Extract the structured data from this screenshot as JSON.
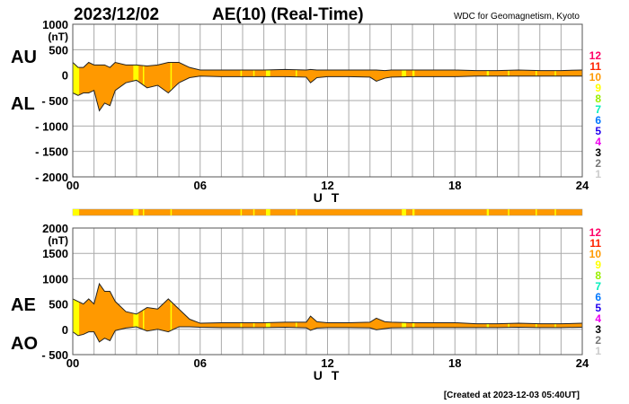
{
  "header": {
    "date": "2023/12/02",
    "title": "AE(10) (Real-Time)",
    "source": "WDC for Geomagnetism, Kyoto"
  },
  "footer": "[Created at 2023-12-03 05:40UT]",
  "legend": {
    "items": [
      {
        "label": "12",
        "color": "#ff0066"
      },
      {
        "label": "11",
        "color": "#ff2200"
      },
      {
        "label": "10",
        "color": "#ff9900"
      },
      {
        "label": "9",
        "color": "#ffff00"
      },
      {
        "label": "8",
        "color": "#99ee00"
      },
      {
        "label": "7",
        "color": "#00eebb"
      },
      {
        "label": "6",
        "color": "#0077ff"
      },
      {
        "label": "5",
        "color": "#2200ee"
      },
      {
        "label": "4",
        "color": "#ee00ee"
      },
      {
        "label": "3",
        "color": "#000000"
      },
      {
        "label": "2",
        "color": "#777777"
      },
      {
        "label": "1",
        "color": "#cccccc"
      }
    ]
  },
  "chart_data": [
    {
      "type": "area",
      "name": "AU/AL",
      "label_upper": "AU",
      "label_lower": "AL",
      "unit": "(nT)",
      "xlabel": "U T",
      "xlim": [
        0,
        24
      ],
      "xticks": [
        "00",
        "06",
        "12",
        "18",
        "24"
      ],
      "ylim": [
        -2000,
        1000
      ],
      "yticks": [
        "1000",
        "500",
        "0",
        "- 500",
        "- 1000",
        "- 1500",
        "- 2000"
      ],
      "grid": true,
      "x": [
        0,
        0.25,
        0.5,
        0.75,
        1,
        1.25,
        1.5,
        1.75,
        2,
        2.5,
        3,
        3.5,
        4,
        4.5,
        5,
        5.5,
        6,
        7,
        8,
        9,
        10,
        11,
        11.2,
        11.5,
        12,
        13,
        14,
        14.3,
        14.7,
        15,
        16,
        17,
        18,
        19,
        20,
        21,
        22,
        23,
        24
      ],
      "series": [
        {
          "name": "AU",
          "values": [
            250,
            150,
            150,
            250,
            200,
            200,
            200,
            150,
            250,
            200,
            200,
            180,
            200,
            250,
            250,
            150,
            100,
            100,
            100,
            100,
            110,
            100,
            110,
            100,
            100,
            100,
            100,
            100,
            90,
            100,
            100,
            100,
            100,
            90,
            90,
            100,
            90,
            90,
            100
          ]
        },
        {
          "name": "AL",
          "values": [
            -350,
            -400,
            -350,
            -350,
            -300,
            -700,
            -550,
            -600,
            -300,
            -150,
            -100,
            -250,
            -200,
            -350,
            -150,
            -50,
            -20,
            -30,
            -30,
            -30,
            -30,
            -40,
            -150,
            -50,
            -30,
            -30,
            -40,
            -120,
            -60,
            -40,
            -30,
            -30,
            -30,
            -20,
            -20,
            -20,
            -20,
            -20,
            -20
          ]
        }
      ]
    },
    {
      "type": "area",
      "name": "AE/AO",
      "label_upper": "AE",
      "label_lower": "AO",
      "unit": "(nT)",
      "xlabel": "U T",
      "xlim": [
        0,
        24
      ],
      "xticks": [
        "00",
        "06",
        "12",
        "18",
        "24"
      ],
      "ylim": [
        -500,
        2000
      ],
      "yticks": [
        "2000",
        "1500",
        "1000",
        "500",
        "0",
        "- 500"
      ],
      "grid": true,
      "x": [
        0,
        0.25,
        0.5,
        0.75,
        1,
        1.25,
        1.5,
        1.75,
        2,
        2.5,
        3,
        3.5,
        4,
        4.5,
        5,
        5.5,
        6,
        7,
        8,
        9,
        10,
        11,
        11.2,
        11.5,
        12,
        13,
        14,
        14.3,
        14.7,
        15,
        16,
        17,
        18,
        19,
        20,
        21,
        22,
        23,
        24
      ],
      "series": [
        {
          "name": "AE",
          "values": [
            600,
            550,
            500,
            600,
            500,
            900,
            750,
            750,
            550,
            350,
            300,
            430,
            400,
            600,
            400,
            200,
            120,
            130,
            130,
            130,
            140,
            140,
            260,
            150,
            130,
            130,
            140,
            220,
            150,
            140,
            130,
            130,
            130,
            110,
            110,
            120,
            110,
            110,
            120
          ]
        },
        {
          "name": "AO",
          "values": [
            -50,
            -125,
            -100,
            -50,
            -50,
            -250,
            -175,
            -225,
            -25,
            25,
            50,
            -35,
            0,
            -50,
            50,
            50,
            40,
            35,
            35,
            35,
            40,
            30,
            -20,
            25,
            35,
            35,
            30,
            -10,
            15,
            30,
            35,
            35,
            35,
            35,
            35,
            40,
            35,
            35,
            40
          ]
        }
      ]
    }
  ],
  "station_count": {
    "default_count": 10,
    "intervals_with_9_stations": [
      [
        0,
        0.3
      ],
      [
        2.85,
        3.1
      ],
      [
        3.3,
        3.35
      ],
      [
        4.6,
        4.65
      ],
      [
        7.9,
        7.95
      ],
      [
        8.5,
        8.55
      ],
      [
        9.1,
        9.3
      ],
      [
        10.5,
        10.55
      ],
      [
        15.5,
        15.7
      ],
      [
        16.0,
        16.1
      ],
      [
        19.5,
        19.6
      ],
      [
        20.5,
        20.55
      ],
      [
        21.8,
        21.85
      ],
      [
        22.7,
        22.75
      ]
    ]
  }
}
